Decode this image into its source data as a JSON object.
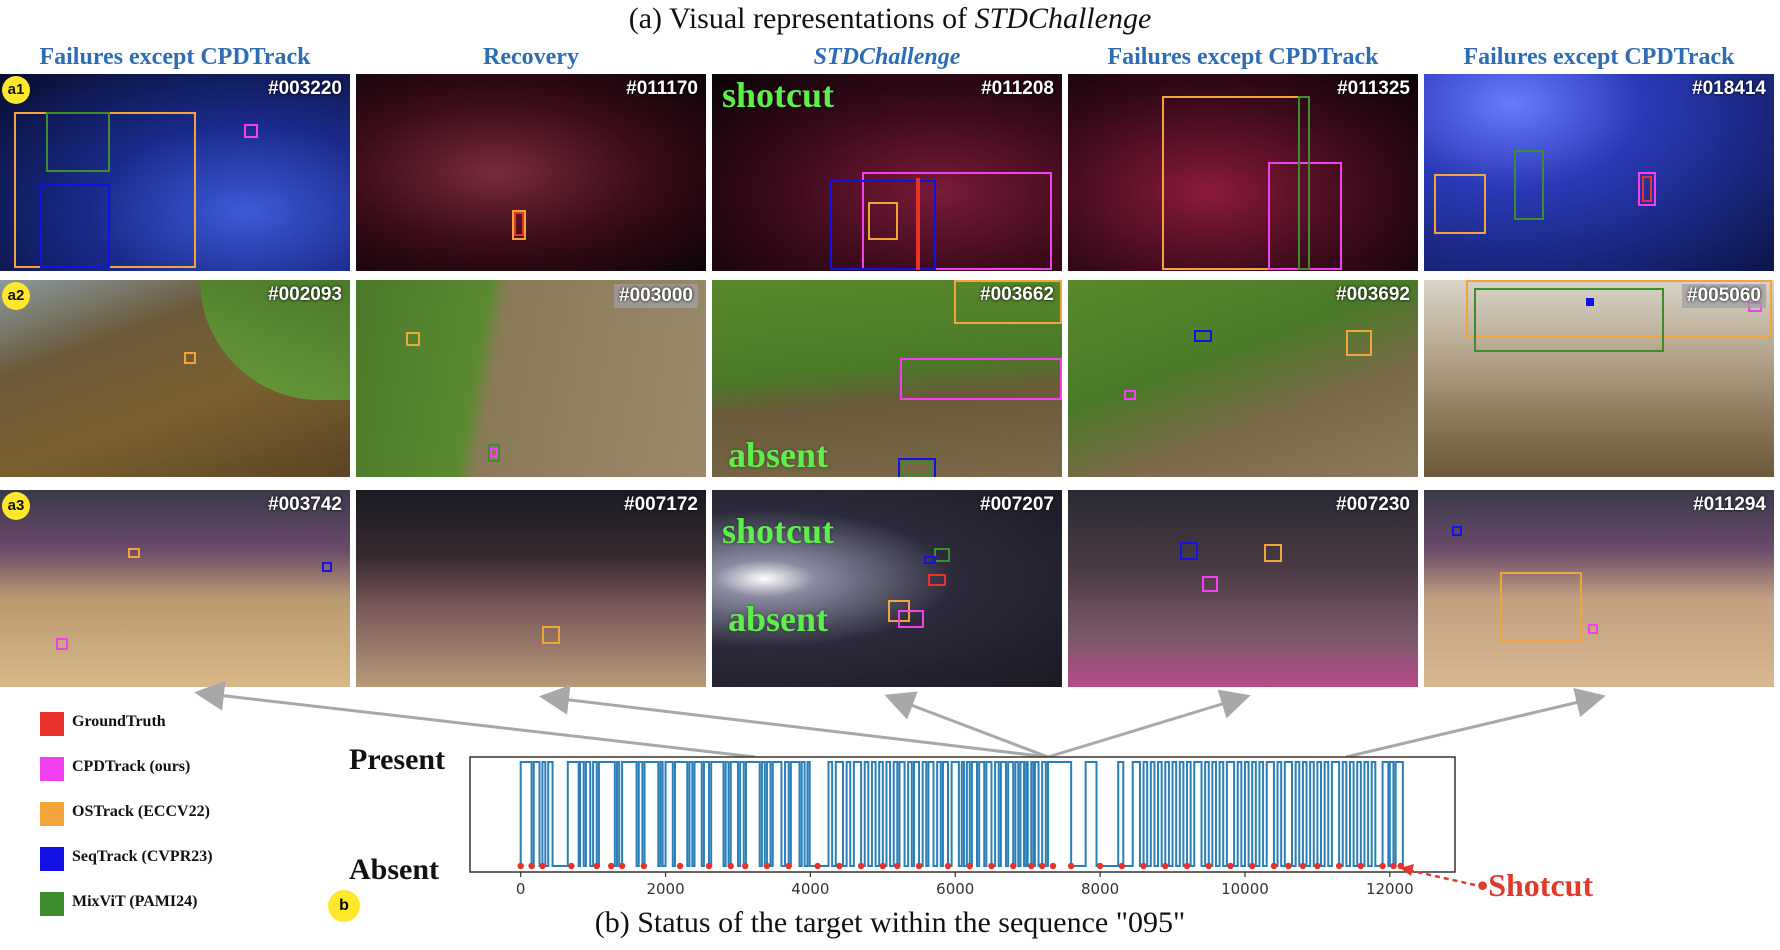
{
  "title_a": {
    "prefix": "(a) Visual representations of ",
    "emph": "STDChallenge"
  },
  "columns": [
    "Failures except CPDTrack",
    "Recovery",
    "STDChallenge",
    "Failures except CPDTrack",
    "Failures except CPDTrack"
  ],
  "row_badges": [
    "a1",
    "a2",
    "a3"
  ],
  "frames": [
    [
      "#003220",
      "#011170",
      "#011208",
      "#011325",
      "#018414"
    ],
    [
      "#002093",
      "#003000",
      "#003662",
      "#003692",
      "#005060"
    ],
    [
      "#003742",
      "#007172",
      "#007207",
      "#007230",
      "#011294"
    ]
  ],
  "overlay_words": {
    "shotcut": "shotcut",
    "absent": "absent"
  },
  "legend": [
    {
      "label": "GroundTruth",
      "color": "#e8322a"
    },
    {
      "label": "CPDTrack (ours)",
      "color": "#f23ff0"
    },
    {
      "label": "OSTrack (ECCV22)",
      "color": "#f2a33a"
    },
    {
      "label": "SeqTrack (CVPR23)",
      "color": "#1212e6"
    },
    {
      "label": "MixViT (PAMI24)",
      "color": "#3d8c2e"
    }
  ],
  "status_labels": {
    "present": "Present",
    "absent": "Absent"
  },
  "shotcut_label": "•Shotcut",
  "badge_b": "b",
  "title_b": "(b) Status of the target within the sequence \"095\"",
  "chart_data": {
    "type": "line",
    "x_ticks": [
      0,
      2000,
      4000,
      6000,
      8000,
      10000,
      12000
    ],
    "xlim": [
      -700,
      12900
    ],
    "y_categories": [
      "Absent",
      "Present"
    ],
    "series_color": "#2a7fb8",
    "present_intervals": [
      [
        0,
        150
      ],
      [
        180,
        260
      ],
      [
        300,
        340
      ],
      [
        380,
        440
      ],
      [
        650,
        800
      ],
      [
        820,
        870
      ],
      [
        900,
        960
      ],
      [
        1000,
        1050
      ],
      [
        1080,
        1300
      ],
      [
        1330,
        1360
      ],
      [
        1400,
        1600
      ],
      [
        1630,
        1680
      ],
      [
        1710,
        1900
      ],
      [
        1930,
        1960
      ],
      [
        2000,
        2100
      ],
      [
        2130,
        2300
      ],
      [
        2330,
        2370
      ],
      [
        2400,
        2500
      ],
      [
        2530,
        2600
      ],
      [
        2630,
        2800
      ],
      [
        2830,
        2870
      ],
      [
        2900,
        3000
      ],
      [
        3030,
        3080
      ],
      [
        3110,
        3300
      ],
      [
        3330,
        3370
      ],
      [
        3400,
        3450
      ],
      [
        3480,
        3600
      ],
      [
        3650,
        3700
      ],
      [
        3730,
        3850
      ],
      [
        3880,
        3920
      ],
      [
        3960,
        3990
      ],
      [
        4250,
        4300
      ],
      [
        4350,
        4450
      ],
      [
        4500,
        4550
      ],
      [
        4600,
        4700
      ],
      [
        4750,
        4800
      ],
      [
        4850,
        4900
      ],
      [
        4950,
        5000
      ],
      [
        5050,
        5100
      ],
      [
        5150,
        5200
      ],
      [
        5230,
        5300
      ],
      [
        5350,
        5400
      ],
      [
        5430,
        5500
      ],
      [
        5550,
        5600
      ],
      [
        5630,
        5700
      ],
      [
        5750,
        5800
      ],
      [
        5830,
        5900
      ],
      [
        5950,
        6050
      ],
      [
        6090,
        6120
      ],
      [
        6160,
        6200
      ],
      [
        6230,
        6300
      ],
      [
        6330,
        6400
      ],
      [
        6430,
        6500
      ],
      [
        6550,
        6600
      ],
      [
        6630,
        6700
      ],
      [
        6730,
        6800
      ],
      [
        6830,
        6870
      ],
      [
        6900,
        6950
      ],
      [
        6980,
        7000
      ],
      [
        7050,
        7080
      ],
      [
        7100,
        7150
      ],
      [
        7200,
        7250
      ],
      [
        7280,
        7600
      ],
      [
        7800,
        7950
      ],
      [
        8250,
        8320
      ],
      [
        8450,
        8550
      ],
      [
        8600,
        8650
      ],
      [
        8700,
        8750
      ],
      [
        8800,
        8850
      ],
      [
        8900,
        8950
      ],
      [
        9000,
        9050
      ],
      [
        9100,
        9150
      ],
      [
        9200,
        9250
      ],
      [
        9300,
        9400
      ],
      [
        9450,
        9500
      ],
      [
        9550,
        9600
      ],
      [
        9650,
        9700
      ],
      [
        9750,
        9850
      ],
      [
        9900,
        9950
      ],
      [
        10000,
        10050
      ],
      [
        10100,
        10150
      ],
      [
        10200,
        10250
      ],
      [
        10300,
        10400
      ],
      [
        10450,
        10500
      ],
      [
        10550,
        10650
      ],
      [
        10700,
        10750
      ],
      [
        10800,
        10850
      ],
      [
        10900,
        10950
      ],
      [
        11000,
        11050
      ],
      [
        11100,
        11150
      ],
      [
        11200,
        11300
      ],
      [
        11350,
        11400
      ],
      [
        11450,
        11500
      ],
      [
        11550,
        11600
      ],
      [
        11650,
        11700
      ],
      [
        11750,
        11800
      ],
      [
        11900,
        11980
      ],
      [
        12000,
        12050
      ],
      [
        12080,
        12180
      ]
    ],
    "shotcut_frames": [
      0,
      150,
      300,
      700,
      1050,
      1250,
      1400,
      1700,
      2200,
      2600,
      2900,
      3100,
      3400,
      3700,
      4100,
      4400,
      4700,
      5000,
      5200,
      5500,
      5900,
      6200,
      6500,
      6800,
      7050,
      7200,
      7350,
      7600,
      8000,
      8300,
      8600,
      8900,
      9200,
      9500,
      9800,
      10100,
      10400,
      10600,
      10800,
      11000,
      11300,
      11600,
      11900,
      12050,
      12150
    ]
  }
}
